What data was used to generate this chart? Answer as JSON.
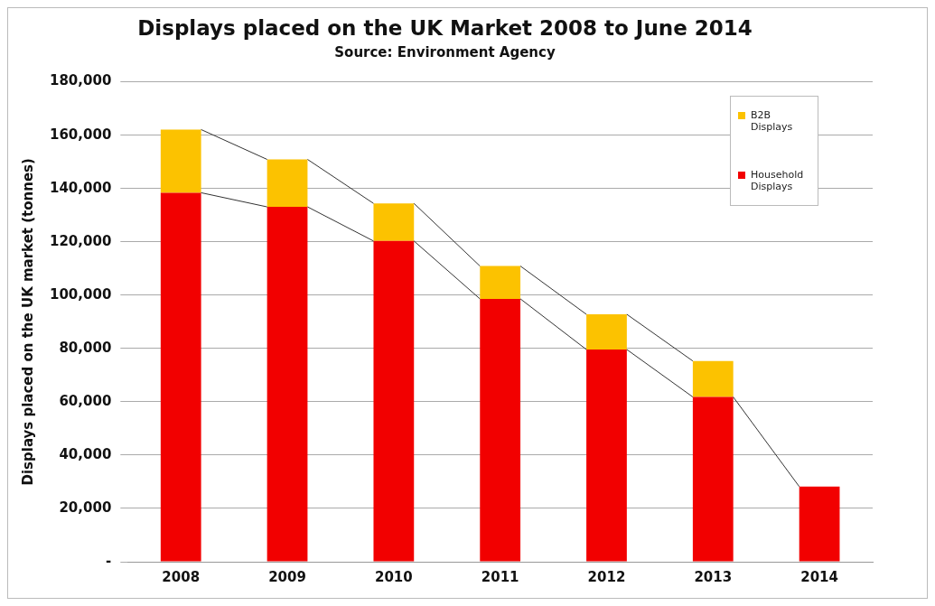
{
  "chart_data": {
    "type": "bar",
    "title": "Displays placed on the UK Market 2008 to June 2014",
    "subtitle": "Source: Environment Agency",
    "ylabel": "Displays placed on the UK market (tonnes)",
    "categories": [
      "2008",
      "2009",
      "2010",
      "2011",
      "2012",
      "2013",
      "2014"
    ],
    "stacked": true,
    "series": [
      {
        "name": "Household Displays",
        "color": "#f20000",
        "values": [
          138400,
          133100,
          120300,
          98600,
          79600,
          61800,
          28200
        ]
      },
      {
        "name": "B2B Displays",
        "color": "#fcc200",
        "values": [
          23700,
          17800,
          14100,
          12300,
          13200,
          13500,
          null
        ]
      }
    ],
    "ylim": [
      0,
      180000
    ],
    "yticks": [
      {
        "value": 0,
        "label": "-"
      },
      {
        "value": 20000,
        "label": "20,000"
      },
      {
        "value": 40000,
        "label": "40,000"
      },
      {
        "value": 60000,
        "label": "60,000"
      },
      {
        "value": 80000,
        "label": "80,000"
      },
      {
        "value": 100000,
        "label": "100,000"
      },
      {
        "value": 120000,
        "label": "120,000"
      },
      {
        "value": 140000,
        "label": "140,000"
      },
      {
        "value": 160000,
        "label": "160,000"
      },
      {
        "value": 180000,
        "label": "180,000"
      }
    ],
    "grid": "y",
    "legend": "top right"
  }
}
